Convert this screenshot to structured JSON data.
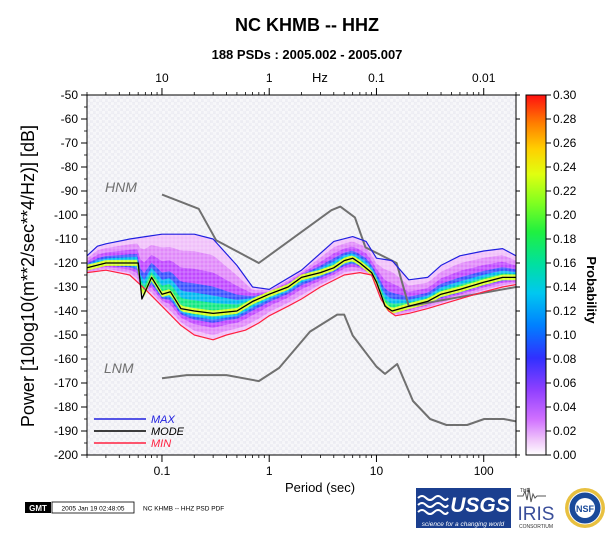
{
  "chart_data": {
    "type": "heatmap",
    "title": "NC KHMB -- HHZ",
    "subtitle": "188 PSDs : 2005.002 - 2005.007",
    "xlabel": "Period (sec)",
    "ylabel": "Power [10log10(m**2/sec**4/Hz)] [dB]",
    "top_axis_label": "Hz",
    "xscale": "log",
    "xlim": [
      0.02,
      200
    ],
    "ylim": [
      -200,
      -50
    ],
    "x_ticks": [
      0.1,
      1,
      10,
      100
    ],
    "x_tick_labels": [
      "0.1",
      "1",
      "10",
      "100"
    ],
    "top_ticks_hz": [
      10,
      1,
      0.1,
      0.01
    ],
    "top_tick_labels": [
      "10",
      "1",
      "0.1",
      "0.01"
    ],
    "y_ticks": [
      -50,
      -60,
      -70,
      -80,
      -90,
      -100,
      -110,
      -120,
      -130,
      -140,
      -150,
      -160,
      -170,
      -180,
      -190,
      -200
    ],
    "y_tick_labels": [
      "-50",
      "-60",
      "-70",
      "-80",
      "-90",
      "-100",
      "-110",
      "-120",
      "-130",
      "-140",
      "-150",
      "-160",
      "-170",
      "-180",
      "-190",
      "-200"
    ],
    "colorbar": {
      "label": "Probability",
      "range": [
        0,
        0.3
      ],
      "tick_labels": [
        "0.30",
        "0.28",
        "0.26",
        "0.24",
        "0.22",
        "0.20",
        "0.18",
        "0.16",
        "0.14",
        "0.12",
        "0.10",
        "0.08",
        "0.06",
        "0.04",
        "0.02",
        "0.00"
      ],
      "colors": [
        "#ffffff",
        "#e890f8",
        "#c040ff",
        "#8040ff",
        "#2030ff",
        "#0090ff",
        "#00d0e0",
        "#00e090",
        "#30ff30",
        "#c0ff20",
        "#ffff00",
        "#ffb000",
        "#ff6000",
        "#ff0000"
      ]
    },
    "annotations": [
      "HNM",
      "LNM"
    ],
    "legend": {
      "placement": "bottom-left",
      "items": [
        {
          "label": "MAX",
          "color": "#2020e0"
        },
        {
          "label": "MODE",
          "color": "#000000"
        },
        {
          "label": "MIN",
          "color": "#ff2040"
        }
      ]
    },
    "series": [
      {
        "name": "MAX",
        "color": "#2020e0",
        "x": [
          0.02,
          0.025,
          0.03,
          0.05,
          0.07,
          0.1,
          0.15,
          0.2,
          0.3,
          0.5,
          0.7,
          1,
          2,
          4,
          6,
          8,
          10,
          14,
          20,
          30,
          40,
          60,
          100,
          150,
          200
        ],
        "y": [
          -117,
          -113,
          -112,
          -110,
          -109,
          -108,
          -108,
          -108,
          -110,
          -121,
          -130,
          -131,
          -123,
          -111,
          -109,
          -111,
          -118,
          -119,
          -127,
          -126,
          -121,
          -117,
          -115,
          -114,
          -117
        ]
      },
      {
        "name": "MODE",
        "color": "#000000",
        "x": [
          0.02,
          0.03,
          0.05,
          0.06,
          0.065,
          0.08,
          0.1,
          0.12,
          0.15,
          0.2,
          0.3,
          0.5,
          0.7,
          1,
          1.5,
          2,
          3,
          4,
          5,
          6,
          7,
          9,
          10,
          11,
          12,
          14,
          20,
          30,
          40,
          60,
          100,
          150,
          200
        ],
        "y": [
          -122,
          -120,
          -120,
          -120,
          -135,
          -126,
          -133,
          -132,
          -139,
          -140,
          -141,
          -140,
          -136,
          -133,
          -130,
          -126,
          -124,
          -122,
          -119,
          -118,
          -120,
          -124,
          -128,
          -133,
          -138,
          -140,
          -138,
          -136,
          -133,
          -131,
          -128,
          -126,
          -126
        ]
      },
      {
        "name": "MIN",
        "color": "#ff2040",
        "x": [
          0.02,
          0.03,
          0.05,
          0.07,
          0.1,
          0.15,
          0.2,
          0.3,
          0.4,
          0.6,
          0.8,
          1,
          1.5,
          2,
          3,
          5,
          7,
          9,
          11,
          13,
          15,
          20,
          30,
          50,
          100,
          150,
          200
        ],
        "y": [
          -124,
          -123,
          -125,
          -131,
          -138,
          -146,
          -150,
          -152,
          -150,
          -148,
          -145,
          -142,
          -138,
          -135,
          -130,
          -125,
          -124,
          -125,
          -135,
          -140,
          -142,
          -141,
          -139,
          -136,
          -132,
          -130,
          -129
        ]
      },
      {
        "name": "HNM",
        "color": "#707070",
        "x": [
          0.1,
          0.22,
          0.32,
          0.8,
          3.8,
          4.6,
          6.3,
          7.9,
          15.4,
          20,
          200
        ],
        "y": [
          -91.5,
          -97.4,
          -110.5,
          -120,
          -98,
          -96.5,
          -101,
          -113.5,
          -120,
          -138,
          -130
        ]
      },
      {
        "name": "LNM",
        "color": "#707070",
        "x": [
          0.1,
          0.17,
          0.4,
          0.8,
          1.24,
          2.4,
          4.3,
          5,
          6,
          10,
          12,
          15.6,
          21.9,
          31.6,
          45,
          70,
          101,
          154,
          200
        ],
        "y": [
          -168,
          -166.7,
          -166.7,
          -169.2,
          -163.7,
          -148.6,
          -141.5,
          -141.5,
          -150.2,
          -163.2,
          -166.2,
          -162.1,
          -177.5,
          -185,
          -187.5,
          -187.5,
          -185,
          -185,
          -186
        ]
      }
    ]
  },
  "footer": {
    "gmt_logo": "GMT",
    "gmt_timestamp": "2005 Jan 19 02:48:05",
    "caption": "NC KHMB -- HHZ PSD PDF"
  },
  "logos": {
    "usgs_text": "USGS",
    "usgs_tagline": "science for a changing world",
    "iris_the": "THE",
    "iris_text": "IRIS",
    "iris_consortium": "CONSORTIUM",
    "nsf_text": "NSF"
  }
}
